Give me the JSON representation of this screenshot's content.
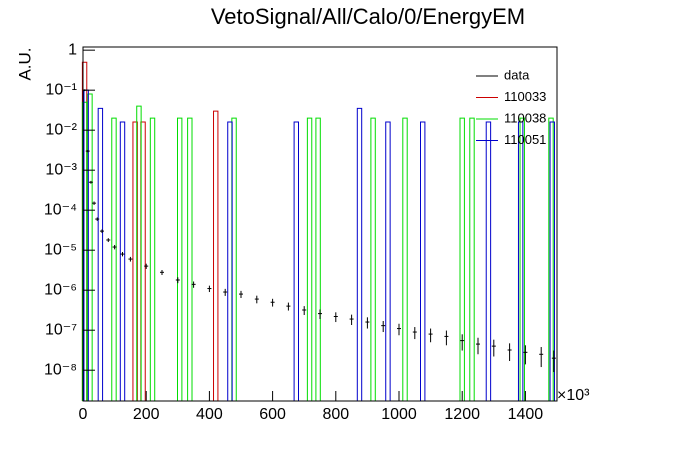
{
  "chart_data": {
    "type": "histogram",
    "title": "VetoSignal/All/Calo/0/EnergyEM",
    "y_label": "A.U.",
    "x_multiplier": "×10³",
    "log_y": true,
    "legend": "top-right",
    "xlim": [
      0,
      1500
    ],
    "xticks": [
      0,
      200,
      400,
      600,
      800,
      1000,
      1200,
      1400
    ],
    "ylim": [
      1.7e-09,
      1.2
    ],
    "yticks": [
      {
        "value": 1e-08,
        "label": "10⁻⁸"
      },
      {
        "value": 1e-07,
        "label": "10⁻⁷"
      },
      {
        "value": 1e-06,
        "label": "10⁻⁶"
      },
      {
        "value": 1e-05,
        "label": "10⁻⁵"
      },
      {
        "value": 0.0001,
        "label": "10⁻⁴"
      },
      {
        "value": 0.001,
        "label": "10⁻³"
      },
      {
        "value": 0.01,
        "label": "10⁻²"
      },
      {
        "value": 0.1,
        "label": "10⁻¹"
      },
      1
    ],
    "series": [
      {
        "name": "data",
        "color": "#000000",
        "style": "points",
        "x": [
          5,
          15,
          25,
          35,
          45,
          60,
          80,
          100,
          125,
          150,
          200,
          250,
          300,
          350,
          400,
          450,
          500,
          550,
          600,
          650,
          700,
          750,
          800,
          850,
          900,
          950,
          1000,
          1050,
          1100,
          1150,
          1200,
          1250,
          1300,
          1350,
          1400,
          1450,
          1490
        ],
        "values": [
          0.1,
          0.003,
          0.0005,
          0.00015,
          6e-05,
          3e-05,
          1.8e-05,
          1.2e-05,
          8e-06,
          6e-06,
          4e-06,
          2.8e-06,
          1.8e-06,
          1.4e-06,
          1.1e-06,
          9e-07,
          8e-07,
          6e-07,
          5e-07,
          4e-07,
          3.2e-07,
          2.6e-07,
          2.2e-07,
          1.9e-07,
          1.6e-07,
          1.3e-07,
          1.1e-07,
          9e-08,
          8e-08,
          7e-08,
          5.5e-08,
          4.5e-08,
          4e-08,
          3.2e-08,
          2.8e-08,
          2.5e-08,
          2e-08
        ],
        "errors": [
          0.005,
          0.0002,
          4e-05,
          1.5e-05,
          6e-06,
          3e-06,
          2e-06,
          1.5e-06,
          1e-06,
          8e-07,
          6e-07,
          4e-07,
          3e-07,
          2.5e-07,
          2e-07,
          1.8e-07,
          1.6e-07,
          1.3e-07,
          1.1e-07,
          9e-08,
          8e-08,
          7e-08,
          6e-08,
          5.5e-08,
          5e-08,
          4e-08,
          3.5e-08,
          3e-08,
          3e-08,
          2.8e-08,
          2.4e-08,
          2e-08,
          1.8e-08,
          1.5e-08,
          1.4e-08,
          1.3e-08,
          1.1e-08
        ]
      },
      {
        "name": "110033",
        "color": "#cc0000",
        "style": "bars",
        "x": [
          5,
          165,
          190,
          420
        ],
        "values": [
          0.5,
          0.016,
          0.016,
          0.03
        ]
      },
      {
        "name": "110038",
        "color": "#00dd00",
        "style": "bars",
        "x": [
          5,
          22,
          98,
          177,
          220,
          306,
          338,
          478,
          717,
          744,
          918,
          1019,
          1200,
          1231,
          1390,
          1481
        ],
        "values": [
          0.05,
          0.08,
          0.02,
          0.04,
          0.02,
          0.02,
          0.02,
          0.02,
          0.02,
          0.02,
          0.02,
          0.02,
          0.02,
          0.02,
          0.02,
          0.02
        ]
      },
      {
        "name": "110051",
        "color": "#0000cc",
        "style": "bars",
        "x": [
          10,
          55,
          125,
          465,
          675,
          875,
          965,
          1075,
          1283,
          1385,
          1485
        ],
        "values": [
          0.1,
          0.035,
          0.016,
          0.016,
          0.016,
          0.035,
          0.016,
          0.016,
          0.016,
          0.016,
          0.016
        ]
      }
    ]
  }
}
